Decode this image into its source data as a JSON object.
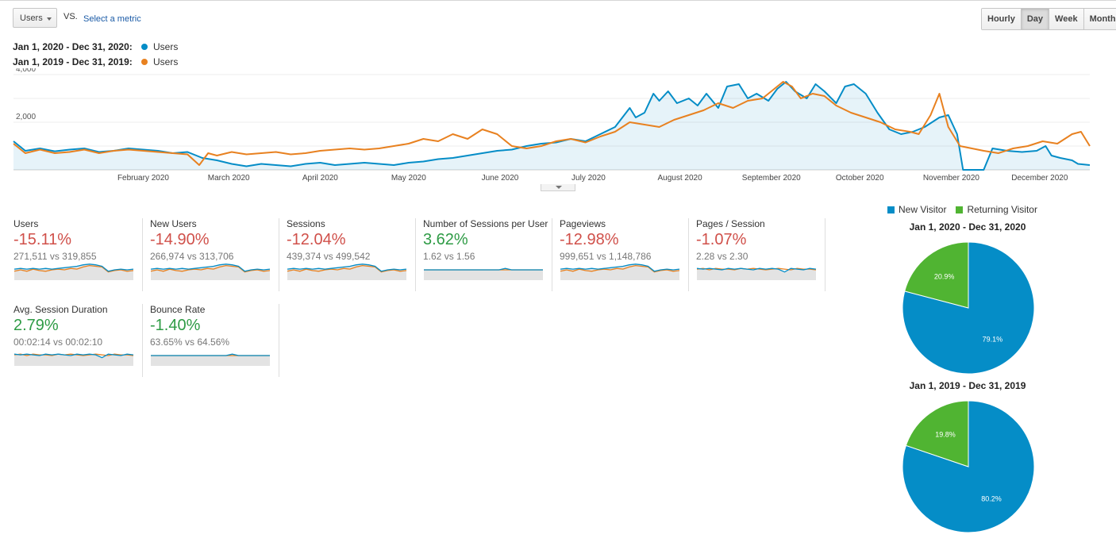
{
  "controls": {
    "metric_selector": "Users",
    "vs_label": "VS.",
    "select_metric_link": "Select a metric",
    "period_buttons": [
      {
        "label": "Hourly",
        "active": false
      },
      {
        "label": "Day",
        "active": true
      },
      {
        "label": "Week",
        "active": false
      },
      {
        "label": "Month",
        "active": false
      }
    ]
  },
  "legend": [
    {
      "range": "Jan 1, 2020 - Dec 31, 2020:",
      "metric": "Users",
      "color": "#058dc7"
    },
    {
      "range": "Jan 1, 2019 - Dec 31, 2019:",
      "metric": "Users",
      "color": "#e88120"
    }
  ],
  "chart_data": {
    "type": "line",
    "y_ticks": [
      "4,000",
      "2,000"
    ],
    "y_tick_values": [
      4000,
      2000
    ],
    "ylim": [
      0,
      4200
    ],
    "x_tick_labels": [
      "February 2020",
      "March 2020",
      "April 2020",
      "May 2020",
      "June 2020",
      "July 2020",
      "August 2020",
      "September 2020",
      "October 2020",
      "November 2020",
      "December 2020"
    ],
    "x_tick_days": [
      45,
      74,
      105,
      135,
      166,
      196,
      227,
      258,
      288,
      319,
      349
    ],
    "x_range_days": [
      1,
      366
    ],
    "grid": true,
    "series": [
      {
        "name": "Users",
        "range": "2020",
        "color": "#058dc7",
        "fill": true,
        "points": [
          [
            1,
            1200
          ],
          [
            5,
            800
          ],
          [
            10,
            900
          ],
          [
            15,
            780
          ],
          [
            20,
            850
          ],
          [
            25,
            900
          ],
          [
            30,
            750
          ],
          [
            35,
            800
          ],
          [
            40,
            900
          ],
          [
            45,
            850
          ],
          [
            50,
            800
          ],
          [
            55,
            700
          ],
          [
            60,
            750
          ],
          [
            65,
            500
          ],
          [
            70,
            400
          ],
          [
            75,
            250
          ],
          [
            80,
            150
          ],
          [
            85,
            250
          ],
          [
            90,
            200
          ],
          [
            95,
            150
          ],
          [
            100,
            250
          ],
          [
            105,
            300
          ],
          [
            110,
            200
          ],
          [
            115,
            250
          ],
          [
            120,
            300
          ],
          [
            125,
            250
          ],
          [
            130,
            200
          ],
          [
            135,
            300
          ],
          [
            140,
            350
          ],
          [
            145,
            450
          ],
          [
            150,
            500
          ],
          [
            155,
            600
          ],
          [
            160,
            700
          ],
          [
            165,
            800
          ],
          [
            170,
            850
          ],
          [
            175,
            1000
          ],
          [
            180,
            1100
          ],
          [
            185,
            1150
          ],
          [
            190,
            1300
          ],
          [
            195,
            1200
          ],
          [
            200,
            1500
          ],
          [
            205,
            1800
          ],
          [
            210,
            2600
          ],
          [
            212,
            2200
          ],
          [
            215,
            2400
          ],
          [
            218,
            3200
          ],
          [
            220,
            2900
          ],
          [
            223,
            3300
          ],
          [
            226,
            2800
          ],
          [
            230,
            3000
          ],
          [
            233,
            2700
          ],
          [
            236,
            3200
          ],
          [
            240,
            2600
          ],
          [
            243,
            3500
          ],
          [
            247,
            3600
          ],
          [
            250,
            3000
          ],
          [
            253,
            3200
          ],
          [
            257,
            2900
          ],
          [
            260,
            3400
          ],
          [
            263,
            3700
          ],
          [
            266,
            3300
          ],
          [
            270,
            3000
          ],
          [
            273,
            3600
          ],
          [
            276,
            3300
          ],
          [
            280,
            2800
          ],
          [
            283,
            3500
          ],
          [
            286,
            3600
          ],
          [
            290,
            3200
          ],
          [
            294,
            2400
          ],
          [
            298,
            1700
          ],
          [
            302,
            1500
          ],
          [
            306,
            1600
          ],
          [
            310,
            1800
          ],
          [
            315,
            2200
          ],
          [
            318,
            2300
          ],
          [
            321,
            1500
          ],
          [
            323,
            0
          ],
          [
            330,
            0
          ],
          [
            333,
            900
          ],
          [
            338,
            800
          ],
          [
            343,
            750
          ],
          [
            348,
            800
          ],
          [
            351,
            1000
          ],
          [
            353,
            600
          ],
          [
            356,
            500
          ],
          [
            360,
            400
          ],
          [
            362,
            250
          ],
          [
            366,
            200
          ]
        ]
      },
      {
        "name": "Users",
        "range": "2019",
        "color": "#e88120",
        "fill": false,
        "points": [
          [
            1,
            1100
          ],
          [
            5,
            700
          ],
          [
            10,
            850
          ],
          [
            15,
            700
          ],
          [
            20,
            750
          ],
          [
            25,
            850
          ],
          [
            30,
            700
          ],
          [
            35,
            800
          ],
          [
            40,
            850
          ],
          [
            45,
            800
          ],
          [
            50,
            750
          ],
          [
            55,
            700
          ],
          [
            60,
            650
          ],
          [
            64,
            200
          ],
          [
            67,
            700
          ],
          [
            70,
            600
          ],
          [
            75,
            750
          ],
          [
            80,
            650
          ],
          [
            85,
            700
          ],
          [
            90,
            750
          ],
          [
            95,
            650
          ],
          [
            100,
            700
          ],
          [
            105,
            800
          ],
          [
            110,
            850
          ],
          [
            115,
            900
          ],
          [
            120,
            850
          ],
          [
            125,
            900
          ],
          [
            130,
            1000
          ],
          [
            135,
            1100
          ],
          [
            140,
            1300
          ],
          [
            145,
            1200
          ],
          [
            150,
            1500
          ],
          [
            155,
            1300
          ],
          [
            160,
            1700
          ],
          [
            165,
            1500
          ],
          [
            170,
            1000
          ],
          [
            175,
            900
          ],
          [
            180,
            1000
          ],
          [
            185,
            1200
          ],
          [
            190,
            1300
          ],
          [
            195,
            1150
          ],
          [
            200,
            1400
          ],
          [
            205,
            1600
          ],
          [
            210,
            2000
          ],
          [
            215,
            1900
          ],
          [
            220,
            1800
          ],
          [
            225,
            2100
          ],
          [
            230,
            2300
          ],
          [
            235,
            2500
          ],
          [
            240,
            2800
          ],
          [
            245,
            2600
          ],
          [
            250,
            2900
          ],
          [
            255,
            3000
          ],
          [
            258,
            3300
          ],
          [
            262,
            3700
          ],
          [
            265,
            3500
          ],
          [
            268,
            3000
          ],
          [
            272,
            3200
          ],
          [
            276,
            3100
          ],
          [
            280,
            2700
          ],
          [
            285,
            2400
          ],
          [
            290,
            2200
          ],
          [
            295,
            2000
          ],
          [
            300,
            1700
          ],
          [
            305,
            1600
          ],
          [
            308,
            1500
          ],
          [
            312,
            2300
          ],
          [
            315,
            3200
          ],
          [
            318,
            1800
          ],
          [
            322,
            1000
          ],
          [
            326,
            900
          ],
          [
            330,
            800
          ],
          [
            335,
            700
          ],
          [
            340,
            900
          ],
          [
            345,
            1000
          ],
          [
            350,
            1200
          ],
          [
            355,
            1100
          ],
          [
            360,
            1500
          ],
          [
            363,
            1600
          ],
          [
            366,
            1000
          ]
        ]
      }
    ]
  },
  "scorecards": [
    {
      "title": "Users",
      "change": "-15.11%",
      "trend": "neg",
      "comparison": "271,511 vs 319,855",
      "spark": "bump"
    },
    {
      "title": "New Users",
      "change": "-14.90%",
      "trend": "neg",
      "comparison": "266,974 vs 313,706",
      "spark": "bump"
    },
    {
      "title": "Sessions",
      "change": "-12.04%",
      "trend": "neg",
      "comparison": "439,374 vs 499,542",
      "spark": "bump"
    },
    {
      "title": "Number of Sessions per User",
      "change": "3.62%",
      "trend": "pos",
      "comparison": "1.62 vs 1.56",
      "spark": "flat"
    },
    {
      "title": "Pageviews",
      "change": "-12.98%",
      "trend": "neg",
      "comparison": "999,651 vs 1,148,786",
      "spark": "bump"
    },
    {
      "title": "Pages / Session",
      "change": "-1.07%",
      "trend": "neg",
      "comparison": "2.28 vs 2.30",
      "spark": "noisy"
    },
    {
      "title": "Avg. Session Duration",
      "change": "2.79%",
      "trend": "pos",
      "comparison": "00:02:14 vs 00:02:10",
      "spark": "noisy"
    },
    {
      "title": "Bounce Rate",
      "change": "-1.40%",
      "trend": "pos",
      "comparison": "63.65% vs 64.56%",
      "spark": "flat"
    }
  ],
  "pies": {
    "legend": [
      {
        "label": "New Visitor",
        "color": "#058dc7"
      },
      {
        "label": "Returning Visitor",
        "color": "#50b432"
      }
    ],
    "charts": [
      {
        "title": "Jan 1, 2020 - Dec 31, 2020",
        "slices": [
          {
            "label": "79.1%",
            "value": 79.1,
            "color": "#058dc7"
          },
          {
            "label": "20.9%",
            "value": 20.9,
            "color": "#50b432"
          }
        ]
      },
      {
        "title": "Jan 1, 2019 - Dec 31, 2019",
        "slices": [
          {
            "label": "80.2%",
            "value": 80.2,
            "color": "#058dc7"
          },
          {
            "label": "19.8%",
            "value": 19.8,
            "color": "#50b432"
          }
        ]
      }
    ]
  }
}
